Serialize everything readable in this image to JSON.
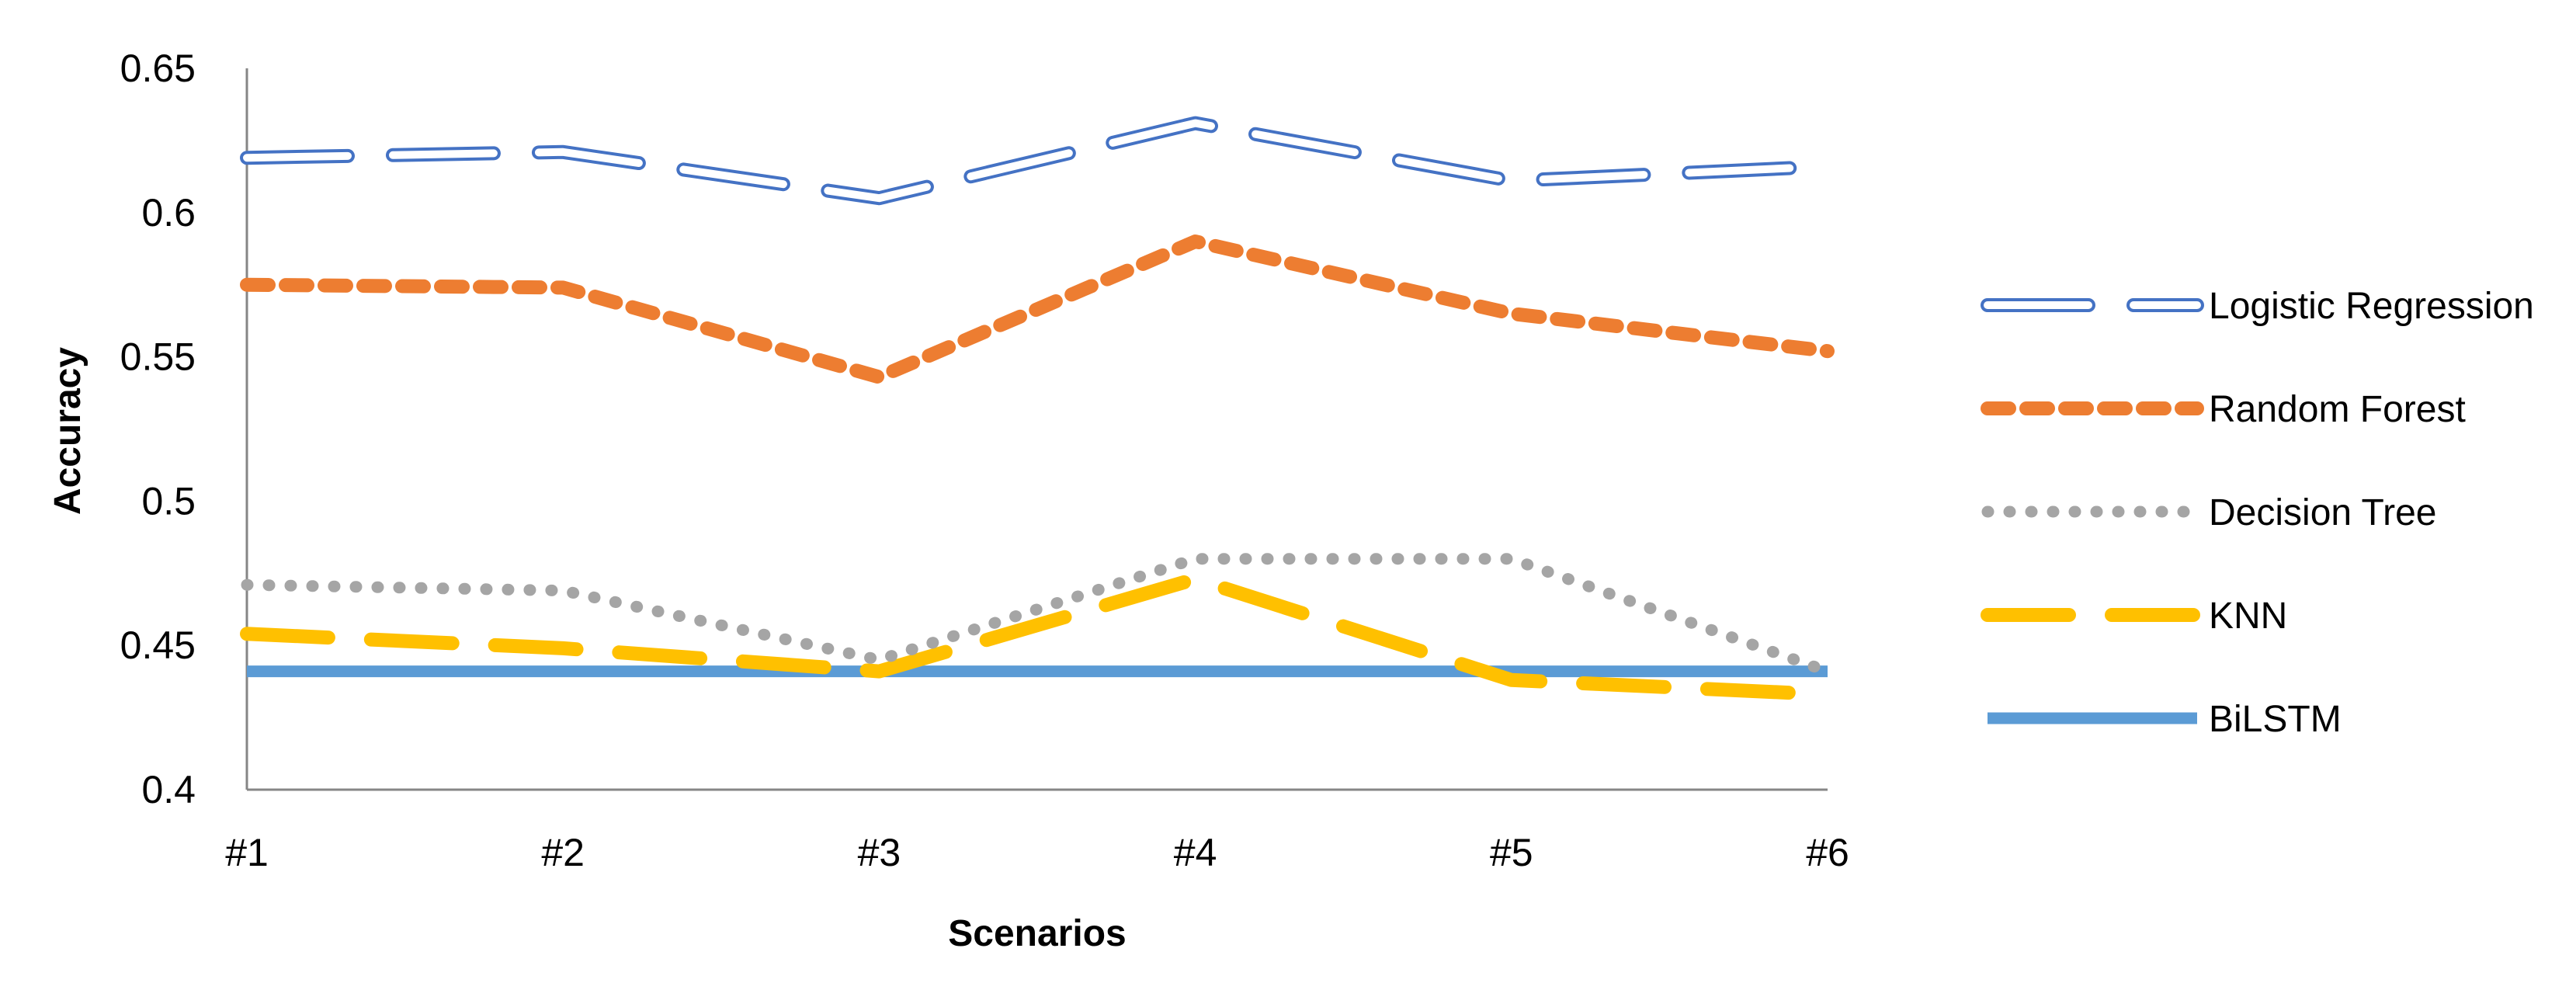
{
  "chart_data": {
    "type": "line",
    "title": "",
    "xlabel": "Scenarios",
    "ylabel": "Accuracy",
    "categories": [
      "#1",
      "#2",
      "#3",
      "#4",
      "#5",
      "#6"
    ],
    "ylim": [
      0.4,
      0.65
    ],
    "yticks": [
      "0.4",
      "0.45",
      "0.5",
      "0.55",
      "0.6",
      "0.65"
    ],
    "grid": false,
    "legend_position": "right",
    "series": [
      {
        "name": "Logistic Regression",
        "values": [
          0.619,
          0.621,
          0.605,
          0.631,
          0.611,
          0.616
        ],
        "color": "#4472C4",
        "style": "double-long-dash"
      },
      {
        "name": "Random Forest",
        "values": [
          0.575,
          0.574,
          0.543,
          0.59,
          0.565,
          0.552
        ],
        "color": "#ED7D31",
        "style": "dash"
      },
      {
        "name": "Decision Tree",
        "values": [
          0.471,
          0.469,
          0.445,
          0.48,
          0.48,
          0.441
        ],
        "color": "#A5A5A5",
        "style": "dot"
      },
      {
        "name": "KNN",
        "values": [
          0.454,
          0.449,
          0.441,
          0.473,
          0.438,
          0.433
        ],
        "color": "#FFC000",
        "style": "long-dash"
      },
      {
        "name": "BiLSTM",
        "values": [
          0.441,
          0.441,
          0.441,
          0.441,
          0.441,
          0.441
        ],
        "color": "#5B9BD5",
        "style": "solid"
      }
    ]
  }
}
